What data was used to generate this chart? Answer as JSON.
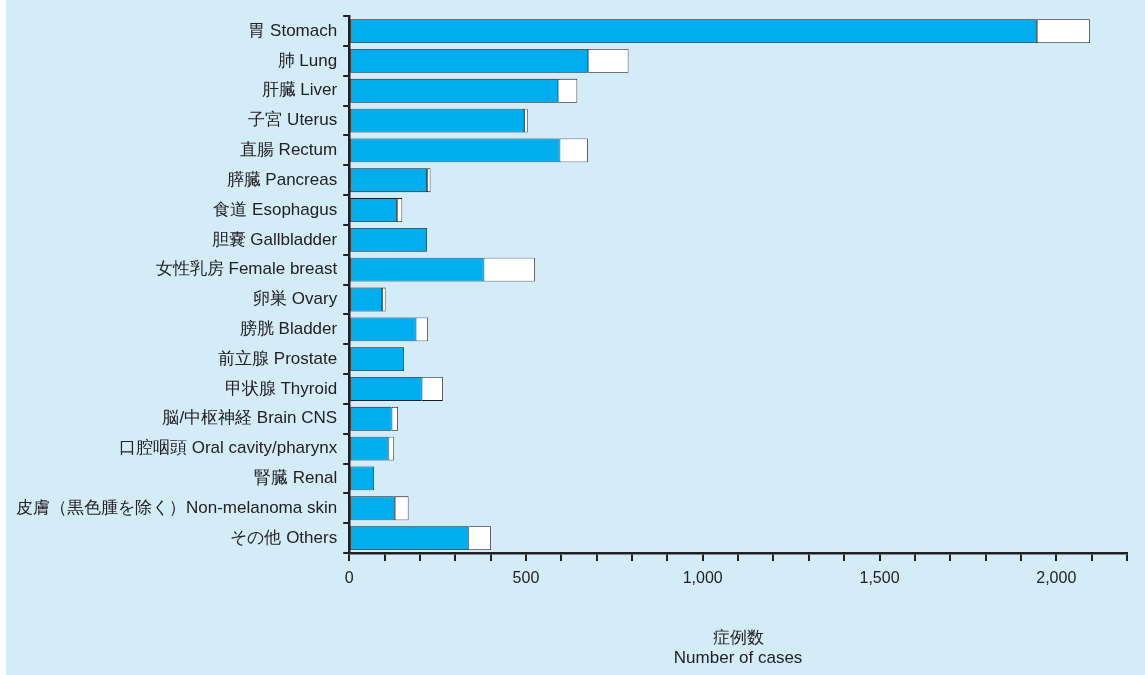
{
  "chart_data": {
    "type": "bar",
    "orientation": "horizontal",
    "stacked": true,
    "categories": [
      "胃 Stomach",
      "肺 Lung",
      "肝臓 Liver",
      "子宮 Uterus",
      "直腸 Rectum",
      "膵臓 Pancreas",
      "食道 Esophagus",
      "胆嚢 Gallbladder",
      "女性乳房 Female breast",
      "卵巣 Ovary",
      "膀胱 Bladder",
      "前立腺 Prostate",
      "甲状腺 Thyroid",
      "脳/中枢神経 Brain CNS",
      "口腔咽頭 Oral cavity/pharynx",
      "腎臓 Renal",
      "皮膚（黒色腫を除く）Non-melanoma skin",
      "その他 Others"
    ],
    "series": [
      {
        "color": "#00aeef",
        "values": [
          1945,
          675,
          590,
          495,
          595,
          220,
          135,
          220,
          380,
          93,
          188,
          155,
          205,
          120,
          111,
          70,
          129,
          337
        ]
      },
      {
        "color": "#ffffff",
        "values": [
          150,
          115,
          55,
          10,
          80,
          10,
          15,
          0,
          145,
          10,
          35,
          0,
          60,
          18,
          16,
          0,
          39,
          64
        ]
      }
    ],
    "xlabel": "症例数\nNumber of cases",
    "xlim": [
      0,
      2200
    ],
    "xticks": [
      0,
      {
        "value": 100,
        "label": null
      },
      {
        "value": 200,
        "label": null
      },
      {
        "value": 300,
        "label": null
      },
      {
        "value": 400,
        "label": null
      },
      {
        "value": 500,
        "label": "500"
      },
      {
        "value": 600,
        "label": null
      },
      {
        "value": 700,
        "label": null
      },
      {
        "value": 800,
        "label": null
      },
      {
        "value": 900,
        "label": null
      },
      {
        "value": 1000,
        "label": "1,000"
      },
      {
        "value": 1100,
        "label": null
      },
      {
        "value": 1200,
        "label": null
      },
      {
        "value": 1300,
        "label": null
      },
      {
        "value": 1400,
        "label": null
      },
      {
        "value": 1500,
        "label": "1,500"
      },
      {
        "value": 1600,
        "label": null
      },
      {
        "value": 1700,
        "label": null
      },
      {
        "value": 1800,
        "label": null
      },
      {
        "value": 1900,
        "label": null
      },
      {
        "value": 2000,
        "label": "2,000"
      },
      {
        "value": 2100,
        "label": null
      },
      {
        "value": 2200,
        "label": null
      }
    ],
    "grid": false,
    "legend": false
  }
}
